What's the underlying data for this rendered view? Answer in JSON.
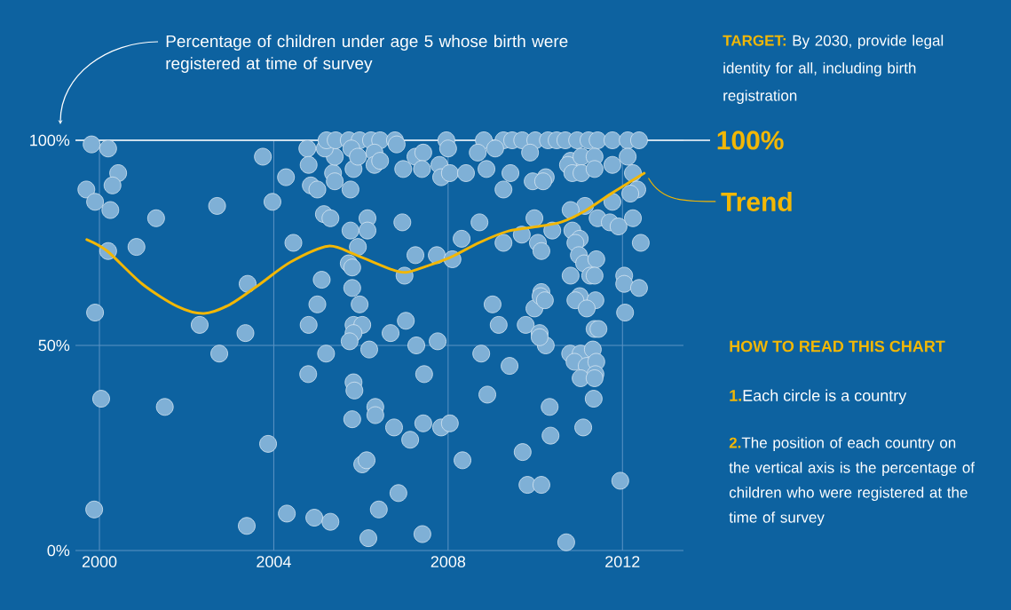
{
  "chart_data": {
    "type": "scatter",
    "ylabel": "Percentage of children under age 5 whose birth were registered at time of survey",
    "xlim": [
      1999.45,
      2013.4
    ],
    "ylim": [
      0,
      100
    ],
    "xticks": [
      2000,
      2004,
      2008,
      2012
    ],
    "yticks": [
      {
        "value": 0,
        "label": "0%"
      },
      {
        "value": 50,
        "label": "50%"
      },
      {
        "value": 100,
        "label": "100%"
      }
    ],
    "grid": true,
    "marker": "circle",
    "series": [
      {
        "color": "#7fb0d6",
        "x": [
          1999.82,
          2000.2,
          2000.43,
          2000.3,
          1999.7,
          1999.9,
          2000.25,
          2001.3,
          2000.2,
          2000.85,
          2002.7,
          2003.75,
          2003.97,
          2003.4,
          2002.3,
          2003.35,
          1999.9,
          2004.45,
          2004.8,
          2005.0,
          2005.1,
          2004.77,
          2004.8,
          2004.28,
          2004.85,
          2005.0,
          2005.15,
          2005.3,
          2005.36,
          2005.4,
          2005.4,
          2005.17,
          2005.76,
          2005.93,
          2005.72,
          2005.8,
          2005.8,
          2005.97,
          2005.83,
          2006.03,
          2005.83,
          2005.76,
          2005.83,
          2006.15,
          2006.15,
          2000.04,
          2001.5,
          1999.88,
          2002.75,
          2003.87,
          2003.38,
          2004.3,
          2004.93,
          2005.3,
          2006.17,
          2004.79,
          2005.2,
          2005.83,
          2005.85,
          2005.8,
          2006.03,
          2006.13,
          2005.74,
          2005.21,
          2005.42,
          2005.72,
          2005.97,
          2006.23,
          2006.44,
          2006.78,
          2007.96,
          2008.82,
          2009.27,
          2009.47,
          2009.7,
          2010.0,
          2010.29,
          2010.49,
          2010.69,
          2010.96,
          2011.22,
          2011.43,
          2011.77,
          2012.12,
          2012.38,
          2005.78,
          2005.93,
          2006.31,
          2006.31,
          2006.44,
          2006.82,
          2006.97,
          2007.25,
          2007.43,
          2007.4,
          2007.8,
          2007.84,
          2008.0,
          2008.04,
          2008.41,
          2008.68,
          2008.88,
          2009.08,
          2009.43,
          2009.27,
          2009.88,
          2009.94,
          2010.24,
          2010.18,
          2010.81,
          2010.75,
          2011.06,
          2010.85,
          2011.06,
          2011.36,
          2011.36,
          2011.77,
          2012.12,
          2012.24,
          2012.34,
          2012.18,
          2011.77,
          2011.43,
          2011.71,
          2011.91,
          2012.24,
          2012.42,
          2011.14,
          2010.81,
          2010.85,
          2011.02,
          2010.92,
          2011.0,
          2011.12,
          2011.4,
          2011.26,
          2011.36,
          2010.81,
          2012.04,
          2012.04,
          2012.38,
          2011.02,
          2010.92,
          2011.38,
          2011.18,
          2012.06,
          2011.36,
          2011.45,
          2009.98,
          2010.39,
          2009.69,
          2010.06,
          2010.14,
          2009.27,
          2008.72,
          2008.31,
          2007.74,
          2007.25,
          2008.1,
          2006.95,
          2007.0,
          2007.03,
          2006.68,
          2009.02,
          2009.16,
          2009.78,
          2009.98,
          2010.14,
          2010.12,
          2010.22,
          2010.1,
          2006.19,
          2007.27,
          2007.76,
          2007.45,
          2006.33,
          2006.33,
          2006.76,
          2007.13,
          2007.43,
          2007.84,
          2008.04,
          2006.86,
          2006.41,
          2007.41,
          2008.33,
          2008.76,
          2009.41,
          2008.9,
          2009.71,
          2009.82,
          2010.14,
          2010.35,
          2010.33,
          2011.1,
          2010.71,
          2011.95,
          2010.24,
          2010.1,
          2010.8,
          2011.04,
          2011.32,
          2010.9,
          2011.18,
          2011.4,
          2011.38,
          2011.04,
          2011.36,
          2011.34
        ],
        "values": [
          99,
          98,
          92,
          89,
          88,
          85,
          83,
          81,
          73,
          74,
          84,
          96,
          85,
          65,
          55,
          53,
          58,
          75,
          55,
          60,
          66,
          98,
          94,
          91,
          89,
          88,
          82,
          81,
          92,
          90,
          96,
          98,
          78,
          74,
          70,
          69,
          64,
          60,
          55,
          55,
          53,
          88,
          93,
          81,
          78,
          37,
          35,
          10,
          48,
          26,
          6,
          9,
          8,
          7,
          3,
          43,
          48,
          41,
          39,
          32,
          21,
          22,
          51,
          100,
          100,
          100,
          100,
          100,
          100,
          100,
          100,
          100,
          100,
          100,
          100,
          100,
          100,
          100,
          100,
          100,
          100,
          100,
          100,
          100,
          100,
          98,
          96,
          97,
          94,
          95,
          99,
          93,
          96,
          97,
          93,
          94,
          91,
          98,
          92,
          92,
          97,
          93,
          98,
          92,
          88,
          97,
          90,
          91,
          90,
          95,
          94,
          96,
          92,
          92,
          96,
          93,
          94,
          96,
          92,
          88,
          87,
          85,
          81,
          80,
          79,
          81,
          75,
          84,
          83,
          78,
          76,
          75,
          72,
          70,
          71,
          67,
          67,
          67,
          67,
          65,
          64,
          62,
          61,
          61,
          59,
          58,
          54,
          54,
          81,
          78,
          77,
          75,
          73,
          75,
          80,
          76,
          72,
          72,
          71,
          80,
          67,
          56,
          53,
          60,
          55,
          55,
          59,
          63,
          62,
          61,
          53,
          49,
          50,
          51,
          43,
          35,
          33,
          30,
          27,
          31,
          30,
          31,
          14,
          10,
          4,
          22,
          48,
          45,
          38,
          24,
          16,
          16,
          28,
          35,
          30,
          2,
          17,
          50,
          52,
          48,
          48,
          49,
          46,
          45,
          46,
          43,
          42,
          42,
          37
        ]
      },
      {
        "type": "line",
        "name": "Trend",
        "color": "#f2b705",
        "marker": "none",
        "x": [
          1999.71,
          2000.18,
          2000.98,
          2001.79,
          2002.4,
          2003.0,
          2003.69,
          2004.38,
          2005.25,
          2005.87,
          2006.68,
          2007.03,
          2007.5,
          2008.04,
          2008.72,
          2009.39,
          2010.08,
          2010.61,
          2011.16,
          2011.77,
          2012.5
        ],
        "values": [
          75.8,
          73,
          65,
          59.5,
          57.8,
          60,
          65,
          70.3,
          74.2,
          72.1,
          68.6,
          67.8,
          69.3,
          71.4,
          75.1,
          77.9,
          79,
          80.1,
          82.9,
          87.2,
          92
        ]
      }
    ],
    "ref_lines": [
      {
        "axis": "y",
        "value": 100,
        "label": "100%",
        "color": "#ffffff"
      }
    ],
    "annotations": [
      "TARGET:",
      "By 2030, provide legal identity for all, including birth registration",
      "HOW TO READ THIS CHART",
      "1.",
      "Each circle is a country",
      "2.",
      "The position of each country on the vertical axis is the percentage of children who were registered at the time of survey"
    ]
  }
}
